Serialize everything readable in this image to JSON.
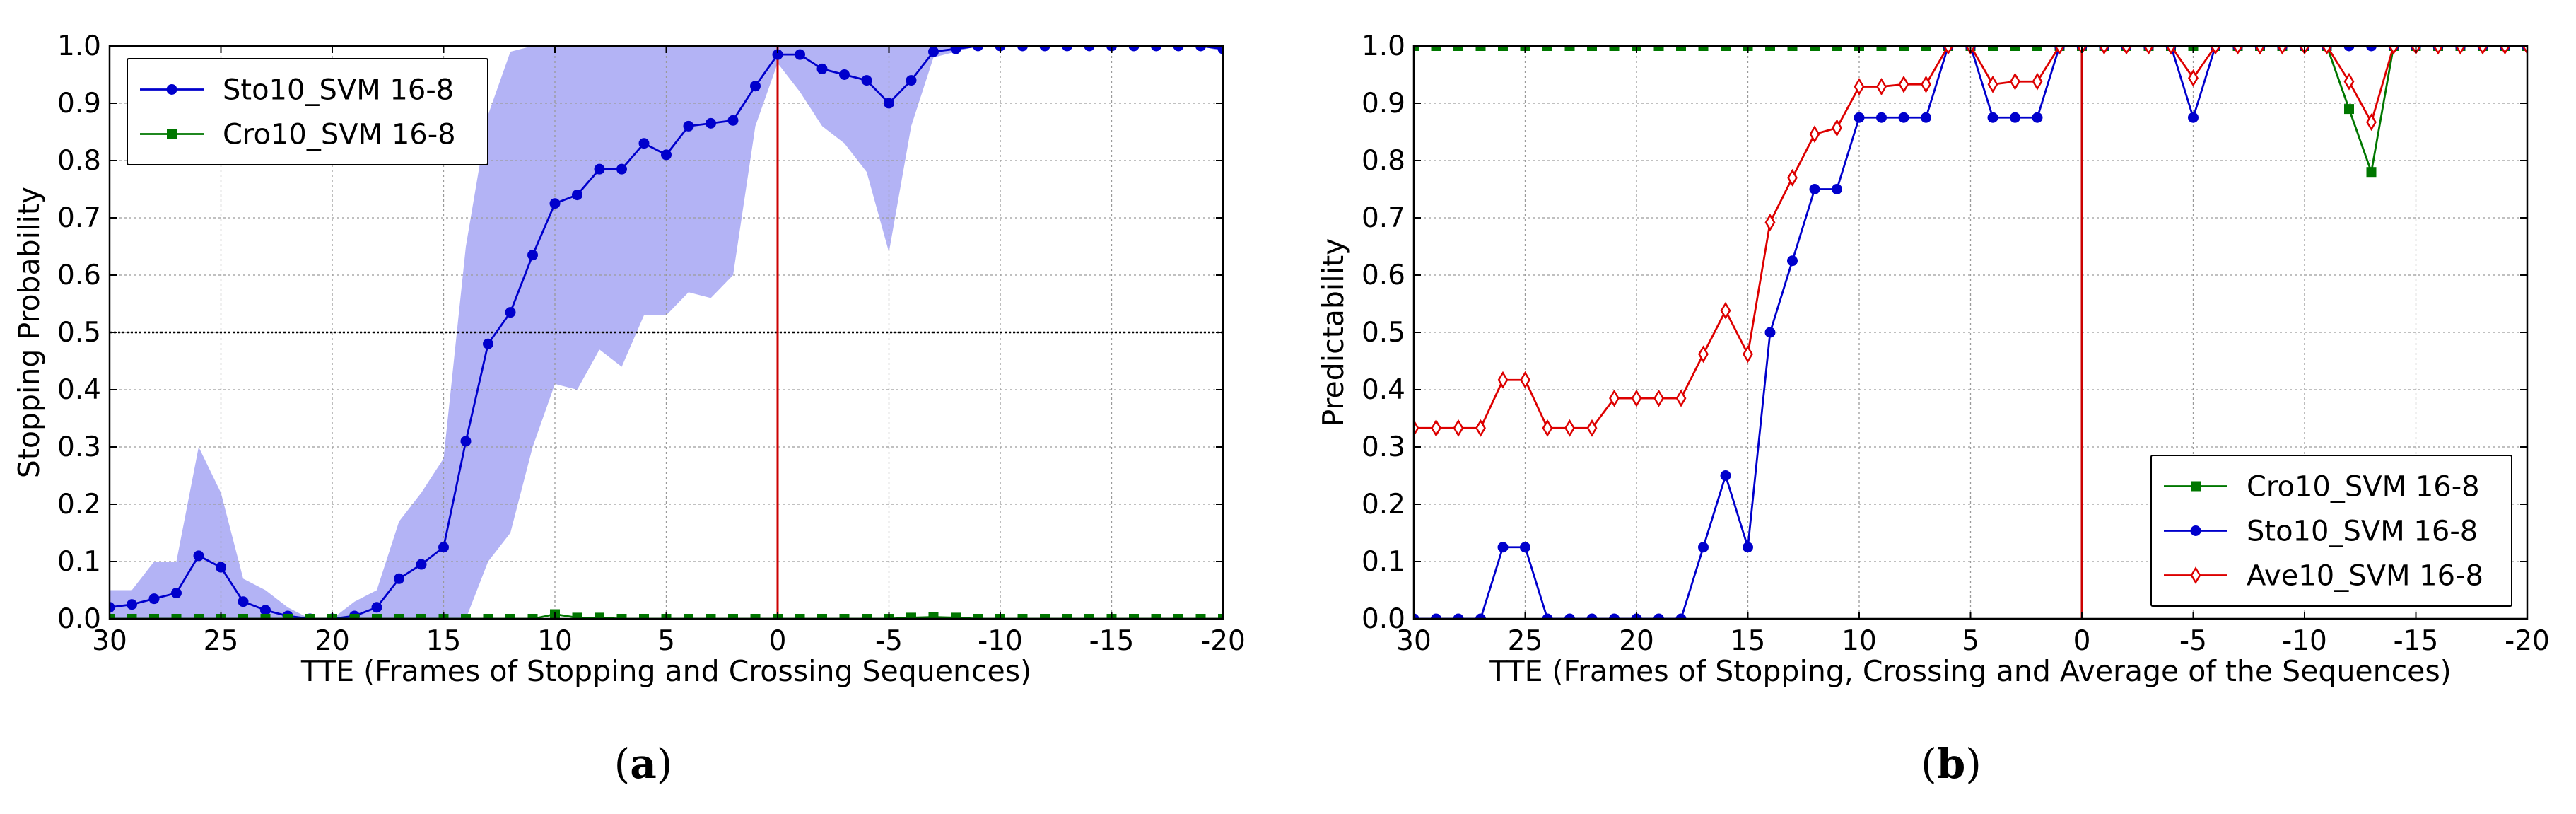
{
  "chart_data": [
    {
      "type": "line",
      "caption_letter": "a",
      "xlabel": "TTE (Frames of Stopping and Crossing Sequences)",
      "ylabel": "Stopping Probability",
      "xlim": [
        30,
        -20
      ],
      "ylim": [
        0,
        1
      ],
      "xticks": [
        "30",
        "25",
        "20",
        "15",
        "10",
        "5",
        "0",
        "-5",
        "-10",
        "-15",
        "-20"
      ],
      "yticks": [
        "0.0",
        "0.1",
        "0.2",
        "0.3",
        "0.4",
        "0.5",
        "0.6",
        "0.7",
        "0.8",
        "0.9",
        "1.0"
      ],
      "grid": true,
      "legend_position": "top-left",
      "threshold_line": 0.5,
      "vertical_marker": 0,
      "x": [
        30,
        29,
        28,
        27,
        26,
        25,
        24,
        23,
        22,
        21,
        20,
        19,
        18,
        17,
        16,
        15,
        14,
        13,
        12,
        11,
        10,
        9,
        8,
        7,
        6,
        5,
        4,
        3,
        2,
        1,
        0,
        -1,
        -2,
        -3,
        -4,
        -5,
        -6,
        -7,
        -8,
        -9,
        -10,
        -11,
        -12,
        -13,
        -14,
        -15,
        -16,
        -17,
        -18,
        -19,
        -20
      ],
      "series": [
        {
          "name": "Sto10_SVM 16-8",
          "color": "#0000cc",
          "marker": "circle",
          "values": [
            0.02,
            0.025,
            0.035,
            0.045,
            0.11,
            0.09,
            0.03,
            0.015,
            0.005,
            0.0,
            0.0,
            0.005,
            0.02,
            0.07,
            0.095,
            0.125,
            0.31,
            0.48,
            0.535,
            0.635,
            0.725,
            0.74,
            0.785,
            0.785,
            0.83,
            0.81,
            0.86,
            0.865,
            0.87,
            0.93,
            0.985,
            0.985,
            0.96,
            0.95,
            0.94,
            0.9,
            0.94,
            0.99,
            0.995,
            1.0,
            1.0,
            1.0,
            1.0,
            1.0,
            1.0,
            1.0,
            1.0,
            1.0,
            1.0,
            1.0,
            0.995
          ],
          "band_lower": [
            0.0,
            0.0,
            0.0,
            0.0,
            0.0,
            0.0,
            0.0,
            0.0,
            0.0,
            0.0,
            0.0,
            0.0,
            0.0,
            0.0,
            0.0,
            0.0,
            0.0,
            0.1,
            0.15,
            0.3,
            0.41,
            0.4,
            0.47,
            0.44,
            0.53,
            0.53,
            0.57,
            0.56,
            0.6,
            0.86,
            0.97,
            0.92,
            0.86,
            0.83,
            0.78,
            0.64,
            0.86,
            0.98,
            0.99,
            1.0,
            1.0,
            1.0,
            1.0,
            1.0,
            1.0,
            1.0,
            1.0,
            1.0,
            1.0,
            1.0,
            0.99
          ],
          "band_upper": [
            0.05,
            0.05,
            0.1,
            0.1,
            0.3,
            0.22,
            0.07,
            0.05,
            0.02,
            0.0,
            0.0,
            0.03,
            0.05,
            0.17,
            0.22,
            0.28,
            0.65,
            0.88,
            0.99,
            1.0,
            1.0,
            1.0,
            1.0,
            1.0,
            1.0,
            1.0,
            1.0,
            1.0,
            1.0,
            1.0,
            1.0,
            1.0,
            1.0,
            1.0,
            1.0,
            1.0,
            1.0,
            1.0,
            1.0,
            1.0,
            1.0,
            1.0,
            1.0,
            1.0,
            1.0,
            1.0,
            1.0,
            1.0,
            1.0,
            1.0,
            1.0
          ]
        },
        {
          "name": "Cro10_SVM 16-8",
          "color": "#007700",
          "marker": "square",
          "values": [
            0,
            0,
            0,
            0,
            0,
            0,
            0,
            0,
            0,
            0,
            0,
            0,
            0,
            0,
            0,
            0,
            0,
            0,
            0,
            0,
            0.008,
            0.002,
            0.002,
            0,
            0,
            0,
            0,
            0,
            0,
            0,
            0,
            0,
            0,
            0,
            0,
            0,
            0.002,
            0.003,
            0.002,
            0,
            0,
            0,
            0,
            0,
            0,
            0,
            0,
            0,
            0,
            0,
            0
          ]
        }
      ]
    },
    {
      "type": "line",
      "caption_letter": "b",
      "xlabel": "TTE (Frames of Stopping, Crossing and Average of the Sequences)",
      "ylabel": "Predictability",
      "xlim": [
        30,
        -20
      ],
      "ylim": [
        0,
        1
      ],
      "xticks": [
        "30",
        "25",
        "20",
        "15",
        "10",
        "5",
        "0",
        "-5",
        "-10",
        "-15",
        "-20"
      ],
      "yticks": [
        "0.0",
        "0.1",
        "0.2",
        "0.3",
        "0.4",
        "0.5",
        "0.6",
        "0.7",
        "0.8",
        "0.9",
        "1.0"
      ],
      "grid": true,
      "legend_position": "bottom-right",
      "vertical_marker": 0,
      "x": [
        30,
        29,
        28,
        27,
        26,
        25,
        24,
        23,
        22,
        21,
        20,
        19,
        18,
        17,
        16,
        15,
        14,
        13,
        12,
        11,
        10,
        9,
        8,
        7,
        6,
        5,
        4,
        3,
        2,
        1,
        0,
        -1,
        -2,
        -3,
        -4,
        -5,
        -6,
        -7,
        -8,
        -9,
        -10,
        -11,
        -12,
        -13,
        -14,
        -15,
        -16,
        -17,
        -18,
        -19,
        -20
      ],
      "series": [
        {
          "name": "Cro10_SVM 16-8",
          "color": "#007700",
          "marker": "square",
          "values": [
            1,
            1,
            1,
            1,
            1,
            1,
            1,
            1,
            1,
            1,
            1,
            1,
            1,
            1,
            1,
            1,
            1,
            1,
            1,
            1,
            1,
            1,
            1,
            1,
            1,
            1,
            1,
            1,
            1,
            1,
            1,
            1,
            1,
            1,
            1,
            1,
            1,
            1,
            1,
            1,
            1,
            1,
            0.89,
            0.78,
            1,
            1,
            1,
            1,
            1,
            1,
            1
          ]
        },
        {
          "name": "Sto10_SVM 16-8",
          "color": "#0000cc",
          "marker": "circle",
          "values": [
            0,
            0,
            0,
            0,
            0.125,
            0.125,
            0,
            0,
            0,
            0,
            0,
            0,
            0,
            0.125,
            0.25,
            0.125,
            0.5,
            0.625,
            0.75,
            0.75,
            0.875,
            0.875,
            0.875,
            0.875,
            1,
            1,
            0.875,
            0.875,
            0.875,
            1,
            1,
            1,
            1,
            1,
            1,
            0.875,
            1,
            1,
            1,
            1,
            1,
            1,
            1,
            1,
            1,
            1,
            1,
            1,
            1,
            1,
            1
          ]
        },
        {
          "name": "Ave10_SVM 16-8",
          "color": "#dd0000",
          "marker": "diamond",
          "values": [
            0.333,
            0.333,
            0.333,
            0.333,
            0.417,
            0.417,
            0.333,
            0.333,
            0.333,
            0.385,
            0.385,
            0.385,
            0.385,
            0.462,
            0.538,
            0.462,
            0.692,
            0.77,
            0.846,
            0.857,
            0.929,
            0.929,
            0.933,
            0.933,
            1,
            1,
            0.933,
            0.938,
            0.938,
            1,
            1,
            1,
            1,
            1,
            1,
            0.944,
            1,
            1,
            1,
            1,
            1,
            1,
            0.938,
            0.867,
            1,
            1,
            1,
            1,
            1,
            1,
            1
          ]
        }
      ]
    }
  ]
}
